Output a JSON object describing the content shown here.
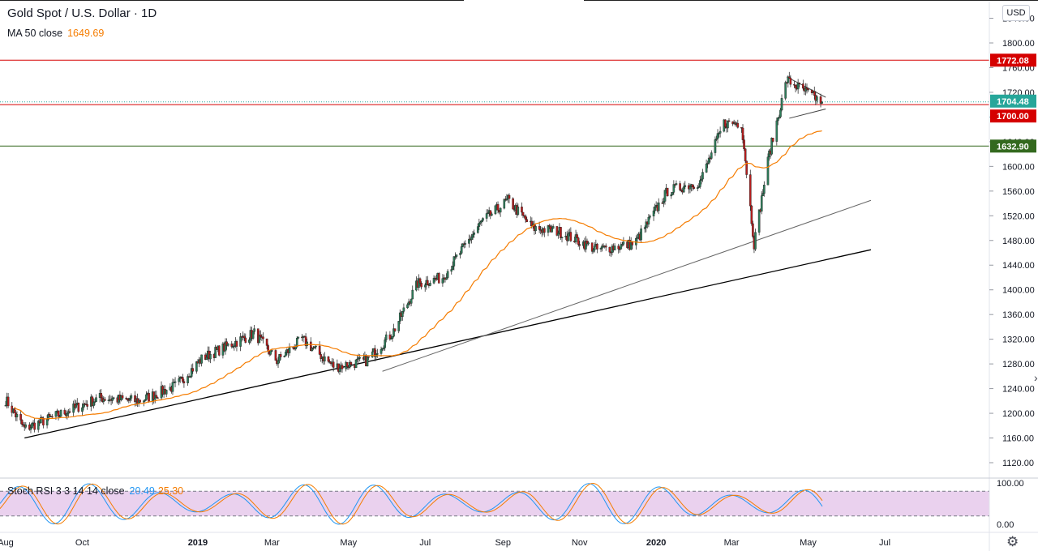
{
  "header": {
    "title": "Gold Spot / U.S. Dollar · 1D",
    "ma_label": "MA 50 close",
    "ma_value": "1649.69",
    "osc_label": "Stoch RSI 3 3 14 14 close",
    "osc_k": "20.49",
    "osc_d": "25.30",
    "currency": "USD"
  },
  "colors": {
    "up": "#2e7d5a",
    "down": "#b71c1c",
    "ma": "#f57c00",
    "k": "#2196f3",
    "d": "#f57c00",
    "red_line": "#d50000",
    "green_line": "#33691e"
  },
  "chart_data": [
    {
      "type": "candlestick",
      "title": "Gold Spot / U.S. Dollar · 1D",
      "y_ticks": [
        1120,
        1160,
        1200,
        1240,
        1280,
        1320,
        1360,
        1400,
        1440,
        1480,
        1520,
        1560,
        1600,
        1640,
        1680,
        1720,
        1760,
        1800,
        1840
      ],
      "x_ticks": [
        "Aug",
        "Oct",
        "2019",
        "Mar",
        "May",
        "Jul",
        "Sep",
        "Nov",
        "2020",
        "Mar",
        "May",
        "Jul"
      ],
      "ylim": [
        1100,
        1850
      ],
      "price_path": [
        {
          "x": "2018-08-01",
          "y": 1222
        },
        {
          "x": "2018-08-16",
          "y": 1175
        },
        {
          "x": "2018-09-15",
          "y": 1200
        },
        {
          "x": "2018-10-15",
          "y": 1225
        },
        {
          "x": "2018-11-15",
          "y": 1220
        },
        {
          "x": "2018-12-15",
          "y": 1245
        },
        {
          "x": "2019-01-05",
          "y": 1290
        },
        {
          "x": "2019-02-15",
          "y": 1330
        },
        {
          "x": "2019-03-05",
          "y": 1285
        },
        {
          "x": "2019-03-25",
          "y": 1320
        },
        {
          "x": "2019-04-20",
          "y": 1275
        },
        {
          "x": "2019-05-15",
          "y": 1285
        },
        {
          "x": "2019-06-05",
          "y": 1330
        },
        {
          "x": "2019-06-25",
          "y": 1410
        },
        {
          "x": "2019-07-15",
          "y": 1420
        },
        {
          "x": "2019-08-15",
          "y": 1510
        },
        {
          "x": "2019-09-05",
          "y": 1545
        },
        {
          "x": "2019-09-25",
          "y": 1500
        },
        {
          "x": "2019-10-15",
          "y": 1495
        },
        {
          "x": "2019-11-15",
          "y": 1465
        },
        {
          "x": "2019-12-15",
          "y": 1475
        },
        {
          "x": "2020-01-10",
          "y": 1560
        },
        {
          "x": "2020-02-05",
          "y": 1575
        },
        {
          "x": "2020-02-24",
          "y": 1670
        },
        {
          "x": "2020-03-09",
          "y": 1670
        },
        {
          "x": "2020-03-19",
          "y": 1475
        },
        {
          "x": "2020-03-31",
          "y": 1620
        },
        {
          "x": "2020-04-14",
          "y": 1740
        },
        {
          "x": "2020-05-12",
          "y": 1704
        }
      ],
      "series": [
        {
          "name": "MA 50 close",
          "last_value": 1649.69
        }
      ],
      "horizontal_lines": [
        1772.08,
        1700.0,
        1632.9
      ],
      "price_labels": [
        "1772.08",
        "1704.48",
        "1700.00",
        "1632.90"
      ],
      "last_price": 1704.48,
      "trendlines": [
        {
          "from": {
            "x": "2018-08-16",
            "y": 1160
          },
          "to": {
            "x": "2020-06-20",
            "y": 1465
          }
        },
        {
          "from": {
            "x": "2019-05-28",
            "y": 1268
          },
          "to": {
            "x": "2020-06-20",
            "y": 1545
          }
        }
      ],
      "triangle": [
        {
          "from": {
            "x": "2020-04-14",
            "y": 1745
          },
          "to": {
            "x": "2020-05-15",
            "y": 1712
          }
        },
        {
          "from": {
            "x": "2020-04-16",
            "y": 1678
          },
          "to": {
            "x": "2020-05-15",
            "y": 1693
          }
        }
      ]
    },
    {
      "type": "line",
      "title": "Stoch RSI 3 3 14 14 close",
      "y_ticks": [
        0,
        100
      ],
      "y_tick_labels": [
        "0.00",
        "100.00"
      ],
      "bands": [
        20,
        80
      ],
      "ylim": [
        -5,
        105
      ],
      "series": [
        {
          "name": "K",
          "last_value": 20.49
        },
        {
          "name": "D",
          "last_value": 25.3
        }
      ]
    }
  ]
}
